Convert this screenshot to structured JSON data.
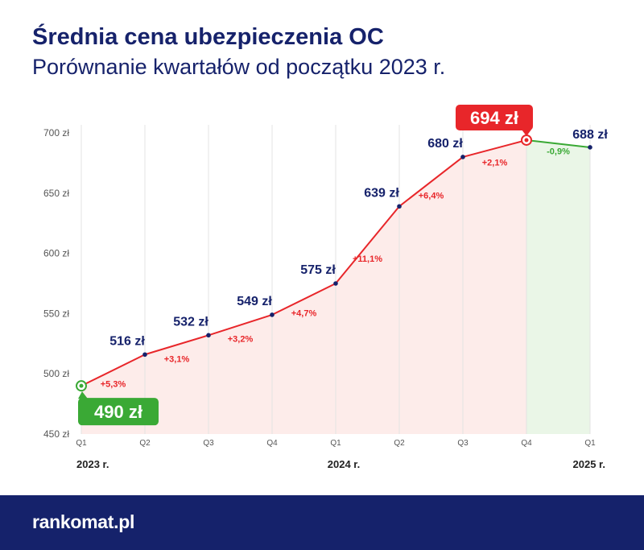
{
  "header": {
    "title": "Średnia cena ubezpieczenia OC",
    "subtitle": "Porównanie kwartałów od początku 2023 r."
  },
  "footer": {
    "logo": "rankomat.pl"
  },
  "colors": {
    "title": "#16226b",
    "line_up": "#e8262a",
    "line_down": "#3aa935",
    "area_fill": "#fdecea",
    "area_fill_last": "#eaf6e7",
    "point": "#16226b",
    "axis_text": "#555555",
    "grid": "#e3e3e3",
    "min_badge": "#3aa935",
    "max_badge": "#e8262a",
    "footer_bg": "#15226b"
  },
  "chart_data": {
    "type": "line",
    "title": "Średnia cena ubezpieczenia OC",
    "subtitle": "Porównanie kwartałów od początku 2023 r.",
    "categories": [
      "Q1",
      "Q2",
      "Q3",
      "Q4",
      "Q1",
      "Q2",
      "Q3",
      "Q4",
      "Q1"
    ],
    "years": [
      {
        "label": "2023 r.",
        "index": 0
      },
      {
        "label": "2024 r.",
        "index": 4
      },
      {
        "label": "2025 r.",
        "index": 8
      }
    ],
    "values": [
      490,
      516,
      532,
      549,
      575,
      639,
      680,
      694,
      688
    ],
    "value_labels": [
      "490 zł",
      "516 zł",
      "532 zł",
      "549 zł",
      "575 zł",
      "639 zł",
      "680 zł",
      "694 zł",
      "688 zł"
    ],
    "changes": [
      "+5,3%",
      "+3,1%",
      "+3,2%",
      "+4,7%",
      "+11,1%",
      "+6,4%",
      "+2,1%",
      "-0,9%"
    ],
    "yticks": [
      450,
      500,
      550,
      600,
      650,
      700
    ],
    "ytick_labels": [
      "450 zł",
      "500 zł",
      "550 zł",
      "600 zł",
      "650 zł",
      "700 zł"
    ],
    "ylim": [
      450,
      700
    ],
    "min_index": 0,
    "max_index": 7,
    "grid": "vertical"
  }
}
